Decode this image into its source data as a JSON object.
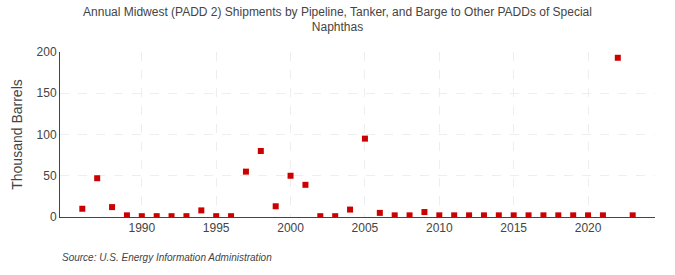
{
  "chart_data": {
    "type": "scatter",
    "title": "Annual Midwest (PADD 2) Shipments by Pipeline, Tanker, and Barge to Other PADDs of Special\nNaphthas",
    "ylabel": "Thousand Barrels",
    "annotations": [
      "Source: U.S. Energy Information Administration"
    ],
    "color": "#cc0000",
    "marker": "square",
    "x": [
      1986,
      1987,
      1988,
      1989,
      1990,
      1991,
      1992,
      1993,
      1994,
      1995,
      1996,
      1997,
      1998,
      1999,
      2000,
      2001,
      2002,
      2003,
      2004,
      2005,
      2006,
      2007,
      2008,
      2009,
      2010,
      2011,
      2012,
      2013,
      2014,
      2015,
      2016,
      2017,
      2018,
      2019,
      2020,
      2021,
      2022,
      2023
    ],
    "values": [
      10,
      47,
      12,
      2,
      1,
      1,
      1,
      1,
      8,
      1,
      1,
      55,
      80,
      13,
      50,
      39,
      1,
      1,
      9,
      95,
      5,
      2,
      2,
      6,
      2,
      2,
      2,
      2,
      2,
      2,
      2,
      2,
      2,
      2,
      2,
      2,
      193,
      2
    ],
    "xlim": [
      1984.5,
      2024.5
    ],
    "xticks": [
      1990,
      1995,
      2000,
      2005,
      2010,
      2015,
      2020
    ],
    "ylim": [
      0,
      200
    ],
    "yticks": [
      0,
      50,
      100,
      150,
      200
    ],
    "grid": true
  }
}
